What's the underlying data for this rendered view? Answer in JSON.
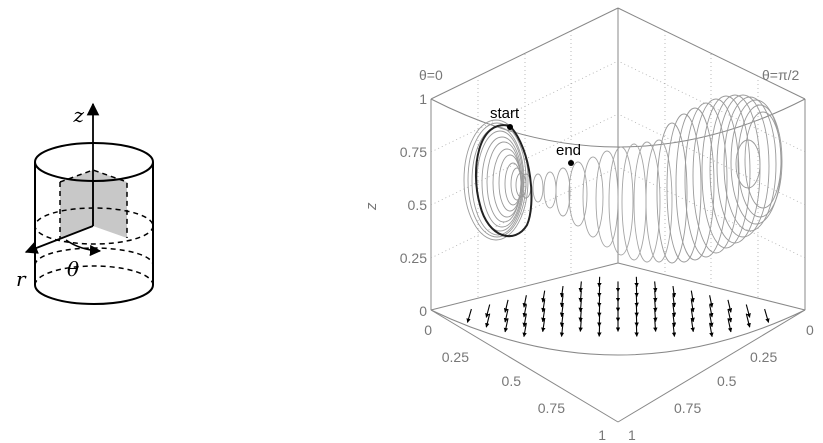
{
  "schematic": {
    "axis_z": "z",
    "axis_r": "r",
    "axis_theta": "θ"
  },
  "plot": {
    "corner_left": "θ=0",
    "corner_right": "θ=π/2",
    "zlabel": "z",
    "z_ticks": [
      "0",
      "0.25",
      "0.5",
      "0.75",
      "1"
    ],
    "left_axis_ticks": [
      "0",
      "0.25",
      "0.5",
      "0.75",
      "1"
    ],
    "right_axis_ticks": [
      "0",
      "0.25",
      "0.5",
      "0.75",
      "1"
    ],
    "marker_start": "start",
    "marker_end": "end",
    "colors": {
      "trajectory": "#9a9a9a",
      "trajectory_dark": "#222222",
      "frame": "#888888",
      "arrows": "#000000",
      "fill": "#cfcfcf"
    }
  }
}
